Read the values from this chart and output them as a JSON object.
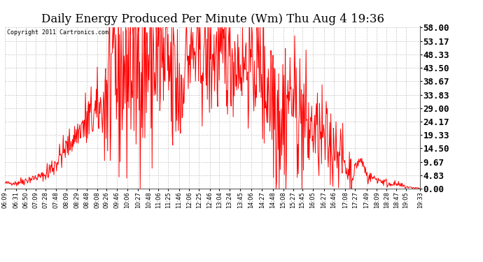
{
  "title": "Daily Energy Produced Per Minute (Wm) Thu Aug 4 19:36",
  "copyright": "Copyright 2011 Cartronics.com",
  "line_color": "#ff0000",
  "bg_color": "#ffffff",
  "plot_bg_color": "#ffffff",
  "grid_color": "#c8c8c8",
  "yticks": [
    0.0,
    4.83,
    9.67,
    14.5,
    19.33,
    24.17,
    29.0,
    33.83,
    38.67,
    43.5,
    48.33,
    53.17,
    58.0
  ],
  "ytick_labels": [
    "0.00",
    "4.83",
    "9.67",
    "14.50",
    "19.33",
    "24.17",
    "29.00",
    "33.83",
    "38.67",
    "43.50",
    "48.33",
    "53.17",
    "58.00"
  ],
  "xtick_labels": [
    "06:09",
    "06:31",
    "06:50",
    "07:09",
    "07:28",
    "07:48",
    "08:09",
    "08:29",
    "08:48",
    "09:08",
    "09:26",
    "09:46",
    "10:06",
    "10:27",
    "10:48",
    "11:06",
    "11:25",
    "11:46",
    "12:06",
    "12:25",
    "12:46",
    "13:04",
    "13:24",
    "13:45",
    "14:06",
    "14:27",
    "14:48",
    "15:08",
    "15:27",
    "15:45",
    "16:05",
    "16:27",
    "16:46",
    "17:08",
    "17:27",
    "17:49",
    "18:09",
    "18:28",
    "18:47",
    "19:05",
    "19:33"
  ],
  "ymin": 0.0,
  "ymax": 58.0,
  "title_fontsize": 12,
  "ytick_fontsize": 9,
  "xtick_fontsize": 6
}
